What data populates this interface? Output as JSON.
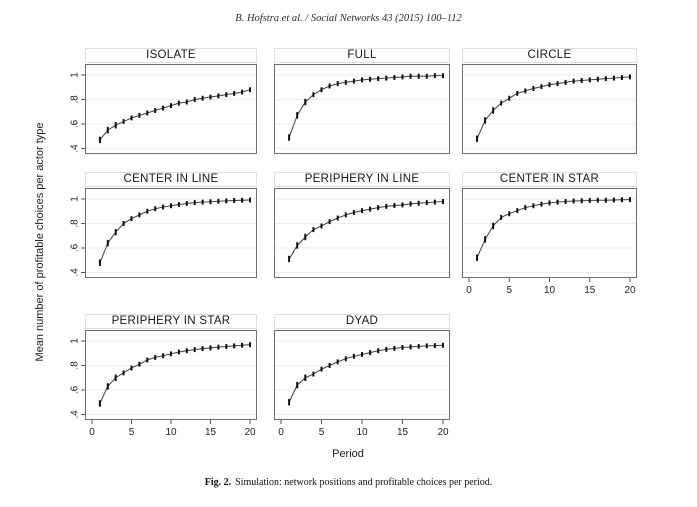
{
  "page": {
    "running_head": "B. Hofstra et al. / Social Networks 43 (2015) 100–112",
    "caption_label": "Fig. 2.",
    "caption_text": "Simulation: network positions and profitable choices per period."
  },
  "colors": {
    "line": "#3f3f3f",
    "marker": "#0d0d0d",
    "gridline": "#e8eef2",
    "panel_border": "#6e6e6e",
    "title_border": "#d9e1e6",
    "tick": "#555555",
    "text": "#222222"
  },
  "chart_data": {
    "type": "line",
    "layout": "small multiples, 8 panels in 3x3 grid, shared axes",
    "title": "",
    "xlabel": "Period",
    "ylabel": "Mean number of profitable choices per actor type",
    "x": [
      1,
      2,
      3,
      4,
      5,
      6,
      7,
      8,
      9,
      10,
      11,
      12,
      13,
      14,
      15,
      16,
      17,
      18,
      19,
      20
    ],
    "xlim": [
      0,
      21
    ],
    "ylim": [
      0.35,
      1.09
    ],
    "x_ticks": [
      "0",
      "5",
      "10",
      "15",
      "20"
    ],
    "x_tick_values": [
      0,
      5,
      10,
      15,
      20
    ],
    "y_ticks": [
      ".4",
      ".6",
      ".8",
      "1"
    ],
    "y_tick_values": [
      0.4,
      0.6,
      0.8,
      1.0
    ],
    "grid": "horizontal gridlines at y ticks",
    "legend": "none",
    "marker": "point with vertical confidence-interval bar",
    "panels": [
      {
        "title": "ISOLATE",
        "row": 0,
        "col": 0,
        "y_axis": true,
        "x_axis": false,
        "values": [
          0.47,
          0.55,
          0.59,
          0.62,
          0.65,
          0.67,
          0.69,
          0.71,
          0.73,
          0.75,
          0.77,
          0.78,
          0.8,
          0.81,
          0.82,
          0.83,
          0.84,
          0.85,
          0.86,
          0.88
        ]
      },
      {
        "title": "FULL",
        "row": 0,
        "col": 1,
        "y_axis": false,
        "x_axis": false,
        "values": [
          0.49,
          0.67,
          0.78,
          0.84,
          0.88,
          0.91,
          0.93,
          0.94,
          0.95,
          0.96,
          0.965,
          0.97,
          0.975,
          0.98,
          0.985,
          0.99,
          0.99,
          0.99,
          0.995,
          0.995
        ]
      },
      {
        "title": "CIRCLE",
        "row": 0,
        "col": 2,
        "y_axis": false,
        "x_axis": false,
        "values": [
          0.48,
          0.63,
          0.71,
          0.77,
          0.81,
          0.85,
          0.87,
          0.89,
          0.905,
          0.92,
          0.93,
          0.94,
          0.95,
          0.955,
          0.96,
          0.965,
          0.97,
          0.975,
          0.98,
          0.985
        ]
      },
      {
        "title": "CENTER IN LINE",
        "row": 1,
        "col": 0,
        "y_axis": true,
        "x_axis": false,
        "values": [
          0.48,
          0.64,
          0.73,
          0.8,
          0.84,
          0.87,
          0.9,
          0.92,
          0.935,
          0.945,
          0.955,
          0.963,
          0.97,
          0.975,
          0.978,
          0.982,
          0.985,
          0.988,
          0.99,
          0.992
        ]
      },
      {
        "title": "PERIPHERY IN LINE",
        "row": 1,
        "col": 1,
        "y_axis": false,
        "x_axis": false,
        "values": [
          0.51,
          0.62,
          0.69,
          0.75,
          0.78,
          0.815,
          0.845,
          0.87,
          0.89,
          0.905,
          0.917,
          0.93,
          0.94,
          0.947,
          0.952,
          0.96,
          0.965,
          0.97,
          0.975,
          0.98
        ]
      },
      {
        "title": "CENTER IN STAR",
        "row": 1,
        "col": 2,
        "y_axis": false,
        "x_axis": true,
        "values": [
          0.52,
          0.67,
          0.78,
          0.85,
          0.88,
          0.905,
          0.93,
          0.945,
          0.958,
          0.968,
          0.975,
          0.98,
          0.984,
          0.986,
          0.988,
          0.99,
          0.99,
          0.992,
          0.994,
          0.995
        ]
      },
      {
        "title": "PERIPHERY IN STAR",
        "row": 2,
        "col": 0,
        "y_axis": true,
        "x_axis": true,
        "values": [
          0.49,
          0.63,
          0.7,
          0.74,
          0.78,
          0.81,
          0.845,
          0.865,
          0.88,
          0.895,
          0.91,
          0.92,
          0.93,
          0.938,
          0.944,
          0.95,
          0.955,
          0.96,
          0.965,
          0.97
        ]
      },
      {
        "title": "DYAD",
        "row": 2,
        "col": 1,
        "y_axis": false,
        "x_axis": true,
        "values": [
          0.5,
          0.64,
          0.7,
          0.73,
          0.77,
          0.8,
          0.83,
          0.855,
          0.875,
          0.89,
          0.905,
          0.92,
          0.932,
          0.94,
          0.947,
          0.952,
          0.956,
          0.96,
          0.962,
          0.965
        ]
      }
    ]
  }
}
